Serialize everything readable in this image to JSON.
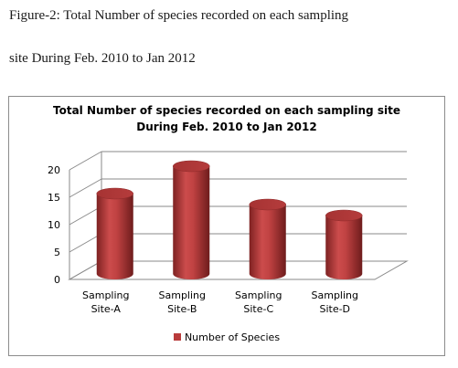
{
  "caption": {
    "line1": "Figure-2: Total Number of species recorded on each sampling",
    "line2": "site During Feb. 2010 to Jan 2012"
  },
  "chart_data": {
    "type": "bar",
    "style": "3d-cylinder",
    "title_lines": [
      "Total Number of species recorded on each sampling site",
      "During Feb. 2010  to Jan 2012"
    ],
    "categories": [
      [
        "Sampling",
        "Site-A"
      ],
      [
        "Sampling",
        "Site-B"
      ],
      [
        "Sampling",
        "Site-C"
      ],
      [
        "Sampling",
        "Site-D"
      ]
    ],
    "series": [
      {
        "name": "Number of Species",
        "values": [
          15,
          20,
          13,
          11
        ],
        "color": "#b93b3b"
      }
    ],
    "ylim": [
      0,
      20
    ],
    "yticks": [
      0,
      5,
      10,
      15,
      20
    ],
    "grid": true,
    "legend_position": "bottom"
  }
}
